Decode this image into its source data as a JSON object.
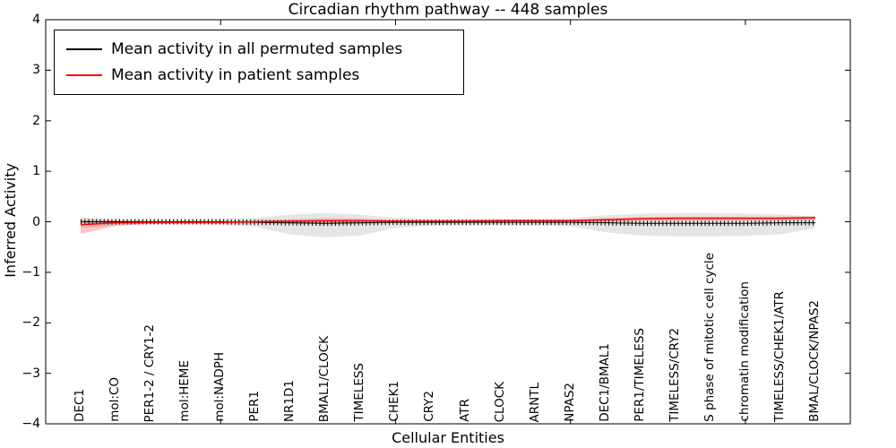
{
  "title": "Circadian rhythm pathway -- 448 samples",
  "axes": {
    "ylabel": "Inferred Activity",
    "xlabel": "Cellular Entities"
  },
  "legend": {
    "items": [
      {
        "label": "Mean activity in all permuted samples",
        "color": "#000000"
      },
      {
        "label": "Mean activity in patient samples",
        "color": "#ff0000"
      }
    ]
  },
  "chart_data": {
    "type": "line",
    "title": "Circadian rhythm pathway -- 448 samples",
    "xlabel": "Cellular Entities",
    "ylabel": "Inferred Activity",
    "ylim": [
      -4,
      4
    ],
    "grid": false,
    "legend_position": "upper left",
    "categories": [
      "DEC1",
      "mol:CO",
      "PER1-2 / CRY1-2",
      "mol:HEME",
      "mol:NADPH",
      "PER1",
      "NR1D1",
      "BMAL1/CLOCK",
      "TIMELESS",
      "CHEK1",
      "CRY2",
      "ATR",
      "CLOCK",
      "ARNTL",
      "NPAS2",
      "DEC1/BMAL1",
      "PER1/TIMELESS",
      "TIMELESS/CRY2",
      "S phase of mitotic cell cycle",
      "chromatin modification",
      "TIMELESS/CHEK1/ATR",
      "BMAL/CLOCK/NPAS2"
    ],
    "yticks": [
      {
        "v": 4,
        "label": "4"
      },
      {
        "v": 3,
        "label": "3"
      },
      {
        "v": 2,
        "label": "2"
      },
      {
        "v": 1,
        "label": "1"
      },
      {
        "v": 0,
        "label": "0"
      },
      {
        "v": -1,
        "label": "−1"
      },
      {
        "v": -2,
        "label": "−2"
      },
      {
        "v": -3,
        "label": "−3"
      },
      {
        "v": -4,
        "label": "−4"
      }
    ],
    "xtick_marks": [
      5,
      10,
      15,
      20
    ],
    "series": [
      {
        "name": "Mean activity in all permuted samples",
        "color": "#000000",
        "marker": "vertical-dash",
        "values": [
          0.0,
          0.0,
          0.0,
          0.0,
          0.0,
          -0.01,
          -0.02,
          -0.03,
          -0.02,
          -0.01,
          -0.01,
          -0.01,
          -0.01,
          -0.01,
          -0.01,
          -0.02,
          -0.03,
          -0.03,
          -0.03,
          -0.03,
          -0.02,
          -0.02
        ]
      },
      {
        "name": "Mean activity in patient samples",
        "color": "#ff0000",
        "marker": "none",
        "values": [
          -0.06,
          -0.02,
          -0.01,
          -0.01,
          -0.01,
          0.0,
          0.01,
          0.02,
          0.02,
          0.01,
          0.01,
          0.01,
          0.02,
          0.02,
          0.02,
          0.04,
          0.06,
          0.07,
          0.07,
          0.07,
          0.07,
          0.08
        ]
      }
    ],
    "bands": [
      {
        "name": "permuted-samples-envelope",
        "color": "rgba(0,0,0,0.10)",
        "upper": [
          0.09,
          0.05,
          0.04,
          0.04,
          0.05,
          0.08,
          0.14,
          0.17,
          0.14,
          0.08,
          0.06,
          0.06,
          0.06,
          0.06,
          0.07,
          0.13,
          0.16,
          0.17,
          0.17,
          0.16,
          0.15,
          0.1
        ],
        "lower": [
          -0.13,
          -0.07,
          -0.05,
          -0.05,
          -0.06,
          -0.1,
          -0.25,
          -0.31,
          -0.27,
          -0.12,
          -0.08,
          -0.07,
          -0.07,
          -0.08,
          -0.09,
          -0.21,
          -0.27,
          -0.29,
          -0.29,
          -0.28,
          -0.25,
          -0.13
        ]
      },
      {
        "name": "patient-samples-envelope",
        "color": "rgba(255,0,0,0.22)",
        "upper": [
          0.04,
          0.02,
          0.01,
          0.01,
          0.01,
          0.02,
          0.05,
          0.07,
          0.06,
          0.03,
          0.03,
          0.03,
          0.04,
          0.04,
          0.04,
          0.07,
          0.09,
          0.1,
          0.1,
          0.1,
          0.1,
          0.11
        ],
        "lower": [
          -0.24,
          -0.08,
          -0.04,
          -0.03,
          -0.03,
          -0.03,
          -0.04,
          -0.05,
          -0.04,
          -0.02,
          -0.02,
          -0.02,
          -0.01,
          -0.01,
          -0.01,
          0.0,
          0.02,
          0.03,
          0.03,
          0.03,
          0.03,
          0.04
        ]
      }
    ]
  }
}
